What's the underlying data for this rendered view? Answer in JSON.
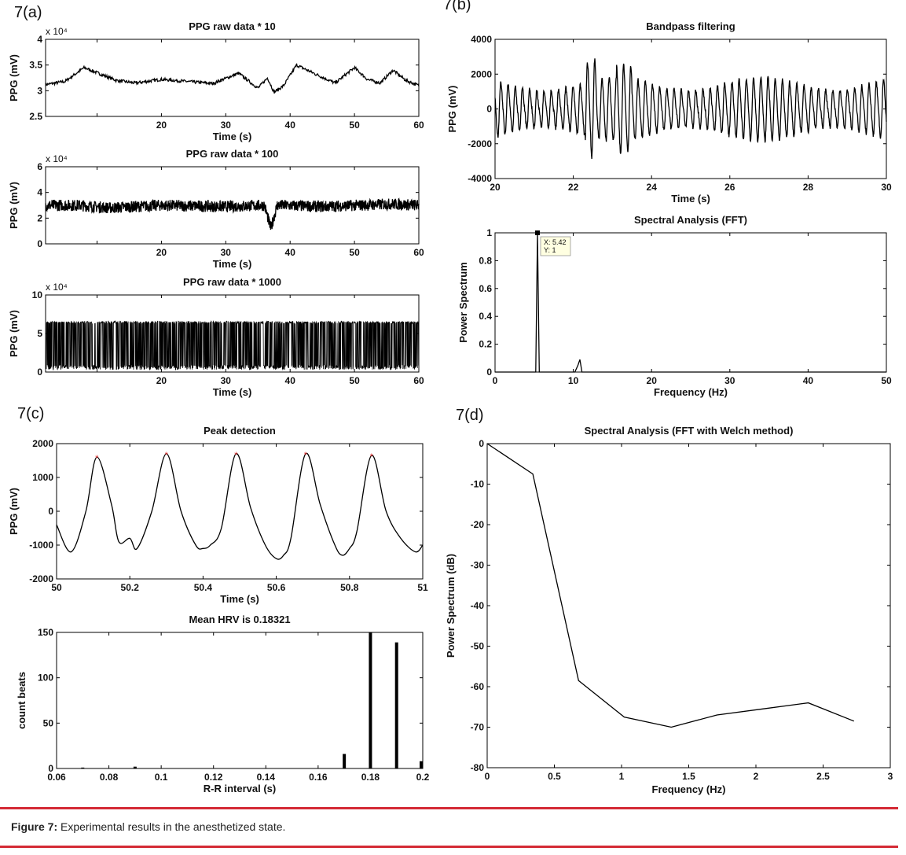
{
  "panels": {
    "a": "7(a)",
    "b": "7(b)",
    "c": "7(c)",
    "d": "7(d)"
  },
  "caption": {
    "label": "Figure 7:",
    "text": "Experimental results in the anesthetized state."
  },
  "datatip": {
    "x": "X: 5.42",
    "y": "Y: 1"
  },
  "chart_data": [
    {
      "id": "a1",
      "type": "line",
      "title": "PPG raw data * 10",
      "xlabel": "Time (s)",
      "ylabel": "PPG (mV)",
      "exponent": "x 10⁴",
      "xlim": [
        2,
        60
      ],
      "ylim": [
        2.5,
        4
      ],
      "xticks": [
        10,
        20,
        30,
        40,
        50,
        60
      ],
      "yticks": [
        2.5,
        3,
        3.5,
        4
      ],
      "x": [
        2,
        5,
        8,
        10,
        13,
        16,
        20,
        24,
        28,
        32,
        35,
        36.5,
        37.5,
        39,
        41,
        44,
        47,
        50,
        52,
        54,
        56,
        58,
        60
      ],
      "y": [
        3.12,
        3.18,
        3.45,
        3.35,
        3.2,
        3.15,
        3.22,
        3.18,
        3.14,
        3.34,
        3.05,
        3.25,
        2.97,
        3.1,
        3.5,
        3.32,
        3.15,
        3.45,
        3.22,
        3.15,
        3.4,
        3.2,
        3.1
      ],
      "noise": 0.03
    },
    {
      "id": "a2",
      "type": "line",
      "title": "PPG raw data * 100",
      "xlabel": "Time (s)",
      "ylabel": "PPG (mV)",
      "exponent": "x 10⁴",
      "xlim": [
        2,
        60
      ],
      "ylim": [
        0,
        6
      ],
      "xticks": [
        10,
        20,
        30,
        40,
        50,
        60
      ],
      "yticks": [
        0,
        2,
        4,
        6
      ],
      "x": [
        2,
        7,
        12,
        20,
        30,
        36,
        37,
        38,
        45,
        56,
        60
      ],
      "y": [
        3.0,
        3.0,
        2.8,
        3.0,
        2.9,
        3.0,
        1.2,
        3.0,
        2.9,
        3.1,
        3.0
      ],
      "noise": 0.45
    },
    {
      "id": "a3",
      "type": "area",
      "title": "PPG raw data * 1000",
      "xlabel": "Time (s)",
      "ylabel": "PPG (mV)",
      "exponent": "x 10⁴",
      "xlim": [
        2,
        60
      ],
      "ylim": [
        0,
        10
      ],
      "xticks": [
        10,
        20,
        30,
        40,
        50,
        60
      ],
      "yticks": [
        0,
        5,
        10
      ],
      "y_range": [
        0.3,
        6.6
      ]
    },
    {
      "id": "b1",
      "type": "line",
      "title": "Bandpass filtering",
      "xlabel": "Time (s)",
      "ylabel": "PPG (mV)",
      "xlim": [
        20,
        30
      ],
      "ylim": [
        -4000,
        4000
      ],
      "xticks": [
        20,
        22,
        24,
        26,
        28,
        30
      ],
      "yticks": [
        -4000,
        -2000,
        0,
        2000,
        4000
      ],
      "heart_rate_hz": 5.42,
      "amplitude": 1600,
      "peaks": [
        {
          "x": 22.45,
          "y": 3100
        },
        {
          "x": 22.43,
          "y": -2100
        },
        {
          "x": 23.22,
          "y": 2500
        },
        {
          "x": 23.5,
          "y": -2000
        }
      ]
    },
    {
      "id": "b2",
      "type": "line",
      "title": "Spectral Analysis (FFT)",
      "xlabel": "Frequency (Hz)",
      "ylabel": "Power Spectrum",
      "xlim": [
        0,
        50
      ],
      "ylim": [
        0,
        1
      ],
      "xticks": [
        0,
        10,
        20,
        30,
        40,
        50
      ],
      "yticks": [
        0,
        0.2,
        0.4,
        0.6,
        0.8,
        1
      ],
      "x": [
        0,
        5.2,
        5.42,
        5.65,
        10.2,
        10.6,
        10.84,
        11.1,
        50
      ],
      "y": [
        0,
        0,
        1,
        0,
        0,
        0.05,
        0.09,
        0,
        0
      ]
    },
    {
      "id": "c1",
      "type": "line",
      "title": "Peak detection",
      "xlabel": "Time (s)",
      "ylabel": "PPG (mV)",
      "xlim": [
        50,
        51
      ],
      "ylim": [
        -2000,
        2000
      ],
      "xticks": [
        50,
        50.2,
        50.4,
        50.6,
        50.8,
        51
      ],
      "yticks": [
        -2000,
        -1000,
        0,
        1000,
        2000
      ],
      "x": [
        50,
        50.04,
        50.08,
        50.11,
        50.15,
        50.17,
        50.2,
        50.22,
        50.26,
        50.3,
        50.34,
        50.38,
        50.4,
        50.42,
        50.45,
        50.49,
        50.53,
        50.57,
        50.6,
        50.62,
        50.64,
        50.68,
        50.72,
        50.76,
        50.78,
        50.8,
        50.82,
        50.86,
        50.9,
        50.94,
        50.98,
        51
      ],
      "y": [
        -400,
        -1200,
        0,
        1600,
        200,
        -900,
        -800,
        -1100,
        0,
        1700,
        0,
        -1000,
        -1100,
        -1000,
        -500,
        1700,
        100,
        -1000,
        -1400,
        -1300,
        -800,
        1700,
        200,
        -1000,
        -1300,
        -1100,
        -600,
        1650,
        0,
        -800,
        -1200,
        -1000
      ],
      "peaks_x": [
        50.11,
        50.3,
        50.49,
        50.68,
        50.86
      ],
      "peaks_y": [
        1600,
        1700,
        1700,
        1700,
        1650
      ]
    },
    {
      "id": "c2",
      "type": "bar",
      "title": "Mean HRV is 0.18321",
      "xlabel": "R-R interval (s)",
      "ylabel": "count beats",
      "xlim": [
        0.06,
        0.2
      ],
      "ylim": [
        0,
        150
      ],
      "xticks": [
        0.06,
        0.08,
        0.1,
        0.12,
        0.14,
        0.16,
        0.18,
        0.2
      ],
      "yticks": [
        0,
        50,
        100,
        150
      ],
      "x": [
        0.07,
        0.09,
        0.17,
        0.18,
        0.19,
        0.2
      ],
      "values": [
        1,
        2,
        16,
        150,
        139,
        8
      ]
    },
    {
      "id": "d1",
      "type": "line",
      "title": "Spectral Analysis (FFT with Welch method)",
      "xlabel": "Frequency (Hz)",
      "ylabel": "Power Spectrum (dB)",
      "xlim": [
        0,
        3
      ],
      "ylim": [
        -80,
        0
      ],
      "xticks": [
        0,
        0.5,
        1,
        1.5,
        2,
        2.5,
        3
      ],
      "yticks": [
        -80,
        -70,
        -60,
        -50,
        -40,
        -30,
        -20,
        -10,
        0
      ],
      "x": [
        0,
        0.34,
        0.68,
        1.02,
        1.37,
        1.71,
        2.05,
        2.39,
        2.73
      ],
      "y": [
        0,
        -7.5,
        -58.5,
        -67.5,
        -70,
        -67,
        -65.5,
        -64,
        -68.5
      ]
    }
  ]
}
